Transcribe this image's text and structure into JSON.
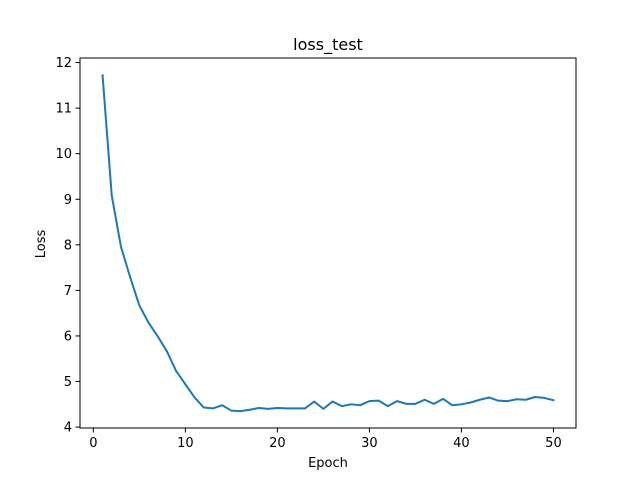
{
  "chart_data": {
    "type": "line",
    "title": "loss_test",
    "xlabel": "Epoch",
    "ylabel": "Loss",
    "xlim": [
      -1.45,
      52.45
    ],
    "ylim": [
      3.98,
      12.1
    ],
    "xticks": [
      0,
      10,
      20,
      30,
      40,
      50
    ],
    "yticks": [
      4,
      5,
      6,
      7,
      8,
      9,
      10,
      11,
      12
    ],
    "grid": false,
    "series": [
      {
        "color": "#1f77b4",
        "x": [
          1,
          2,
          3,
          4,
          5,
          6,
          7,
          8,
          9,
          10,
          11,
          12,
          13,
          14,
          15,
          16,
          17,
          18,
          19,
          20,
          21,
          22,
          23,
          24,
          25,
          26,
          27,
          28,
          29,
          30,
          31,
          32,
          33,
          34,
          35,
          36,
          37,
          38,
          39,
          40,
          41,
          42,
          43,
          44,
          45,
          46,
          47,
          48,
          49,
          50
        ],
        "y": [
          11.72,
          9.08,
          7.96,
          7.29,
          6.67,
          6.29,
          5.99,
          5.66,
          5.23,
          4.94,
          4.65,
          4.43,
          4.41,
          4.48,
          4.36,
          4.35,
          4.38,
          4.42,
          4.4,
          4.42,
          4.41,
          4.41,
          4.41,
          4.56,
          4.4,
          4.56,
          4.46,
          4.5,
          4.48,
          4.57,
          4.58,
          4.46,
          4.57,
          4.51,
          4.51,
          4.6,
          4.51,
          4.62,
          4.48,
          4.5,
          4.54,
          4.6,
          4.65,
          4.58,
          4.57,
          4.61,
          4.6,
          4.66,
          4.64,
          4.59
        ]
      }
    ]
  }
}
